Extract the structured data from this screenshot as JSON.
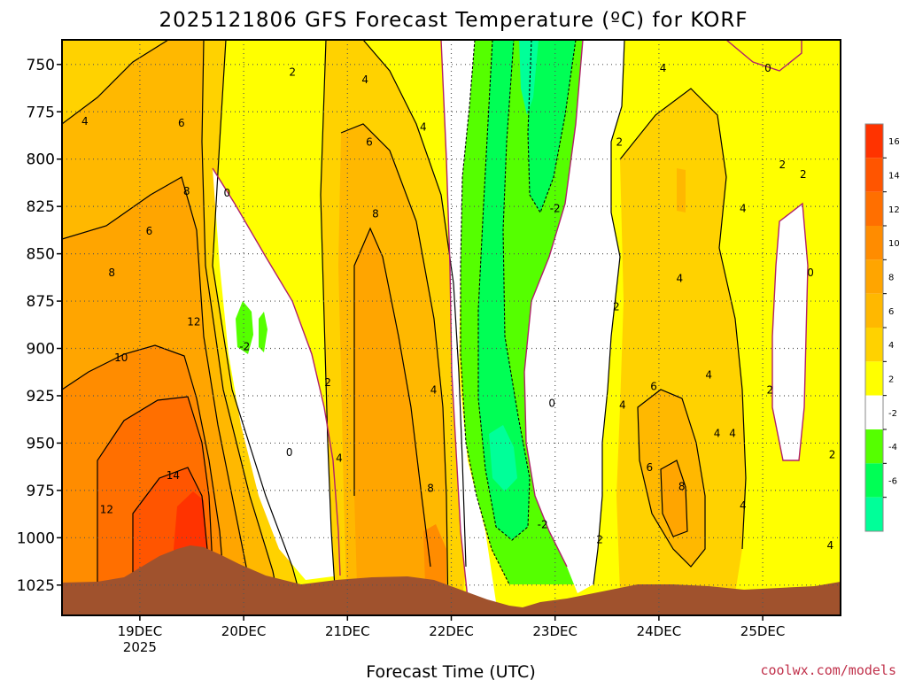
{
  "chart_data": {
    "type": "heatmap",
    "title": "2025121806 GFS Forecast Temperature (ºC) for KORF",
    "xlabel": "Forecast Time (UTC)",
    "ylabel": "",
    "credit": "coolwx.com/models",
    "y_axis": {
      "ticks": [
        750,
        775,
        800,
        825,
        850,
        875,
        900,
        925,
        950,
        975,
        1000,
        1025
      ],
      "range": [
        737,
        1041
      ],
      "inverted": true
    },
    "x_axis": {
      "ticks": [
        "19DEC",
        "20DEC",
        "21DEC",
        "22DEC",
        "23DEC",
        "24DEC",
        "25DEC"
      ],
      "sublabel": "2025",
      "range_days": [
        18.25,
        25.75
      ]
    },
    "grid": true,
    "legend": {
      "placement": "right",
      "labels": [
        "16",
        "14",
        "12",
        "10",
        "8",
        "6",
        "4",
        "2",
        "-2",
        "-4",
        "-6"
      ],
      "bins": [
        {
          "min": 16,
          "max": 18,
          "color": "#ff3300"
        },
        {
          "min": 14,
          "max": 16,
          "color": "#ff5500"
        },
        {
          "min": 12,
          "max": 14,
          "color": "#ff6f00"
        },
        {
          "min": 10,
          "max": 12,
          "color": "#ff8c00"
        },
        {
          "min": 8,
          "max": 10,
          "color": "#ffa500"
        },
        {
          "min": 6,
          "max": 8,
          "color": "#ffb800"
        },
        {
          "min": 4,
          "max": 6,
          "color": "#ffd200"
        },
        {
          "min": 2,
          "max": 4,
          "color": "#ffff00"
        },
        {
          "min": -2,
          "max": 2,
          "color": "#ffffff"
        },
        {
          "min": -4,
          "max": -2,
          "color": "#55ff00"
        },
        {
          "min": -6,
          "max": -4,
          "color": "#00ff55"
        },
        {
          "min": -8,
          "max": -6,
          "color": "#00ff99"
        }
      ]
    },
    "contour_labels": [
      {
        "t": 18.47,
        "p": 780,
        "v": "4"
      },
      {
        "t": 18.73,
        "p": 860,
        "v": "8"
      },
      {
        "t": 18.82,
        "p": 905,
        "v": "10"
      },
      {
        "t": 18.68,
        "p": 985,
        "v": "12"
      },
      {
        "t": 19.09,
        "p": 838,
        "v": "6"
      },
      {
        "t": 19.4,
        "p": 781,
        "v": "6"
      },
      {
        "t": 19.45,
        "p": 817,
        "v": "8"
      },
      {
        "t": 19.52,
        "p": 886,
        "v": "12"
      },
      {
        "t": 19.32,
        "p": 967,
        "v": "14"
      },
      {
        "t": 19.84,
        "p": 818,
        "v": "0"
      },
      {
        "t": 20.01,
        "p": 899,
        "v": "-2"
      },
      {
        "t": 20.44,
        "p": 955,
        "v": "0"
      },
      {
        "t": 20.47,
        "p": 754,
        "v": "2"
      },
      {
        "t": 20.81,
        "p": 918,
        "v": "2"
      },
      {
        "t": 20.92,
        "p": 958,
        "v": "4"
      },
      {
        "t": 21.17,
        "p": 758,
        "v": "4"
      },
      {
        "t": 21.21,
        "p": 791,
        "v": "6"
      },
      {
        "t": 21.27,
        "p": 829,
        "v": "8"
      },
      {
        "t": 21.73,
        "p": 783,
        "v": "4"
      },
      {
        "t": 21.83,
        "p": 922,
        "v": "4"
      },
      {
        "t": 21.8,
        "p": 974,
        "v": "8"
      },
      {
        "t": 23.0,
        "p": 826,
        "v": "-2"
      },
      {
        "t": 22.97,
        "p": 929,
        "v": "0"
      },
      {
        "t": 22.88,
        "p": 993,
        "v": "-2"
      },
      {
        "t": 23.43,
        "p": 1001,
        "v": "2"
      },
      {
        "t": 23.62,
        "p": 791,
        "v": "2"
      },
      {
        "t": 23.59,
        "p": 878,
        "v": "2"
      },
      {
        "t": 23.65,
        "p": 930,
        "v": "4"
      },
      {
        "t": 24.04,
        "p": 752,
        "v": "4"
      },
      {
        "t": 24.2,
        "p": 863,
        "v": "4"
      },
      {
        "t": 23.95,
        "p": 920,
        "v": "6"
      },
      {
        "t": 23.91,
        "p": 963,
        "v": "6"
      },
      {
        "t": 24.22,
        "p": 973,
        "v": "8"
      },
      {
        "t": 24.48,
        "p": 914,
        "v": "4"
      },
      {
        "t": 24.56,
        "p": 945,
        "v": "4"
      },
      {
        "t": 24.71,
        "p": 945,
        "v": "4"
      },
      {
        "t": 24.81,
        "p": 826,
        "v": "4"
      },
      {
        "t": 24.81,
        "p": 983,
        "v": "4"
      },
      {
        "t": 25.05,
        "p": 752,
        "v": "0"
      },
      {
        "t": 25.19,
        "p": 803,
        "v": "2"
      },
      {
        "t": 25.07,
        "p": 922,
        "v": "2"
      },
      {
        "t": 25.39,
        "p": 808,
        "v": "2"
      },
      {
        "t": 25.46,
        "p": 860,
        "v": "0"
      },
      {
        "t": 25.67,
        "p": 956,
        "v": "2"
      },
      {
        "t": 25.65,
        "p": 1004,
        "v": "4"
      }
    ]
  }
}
